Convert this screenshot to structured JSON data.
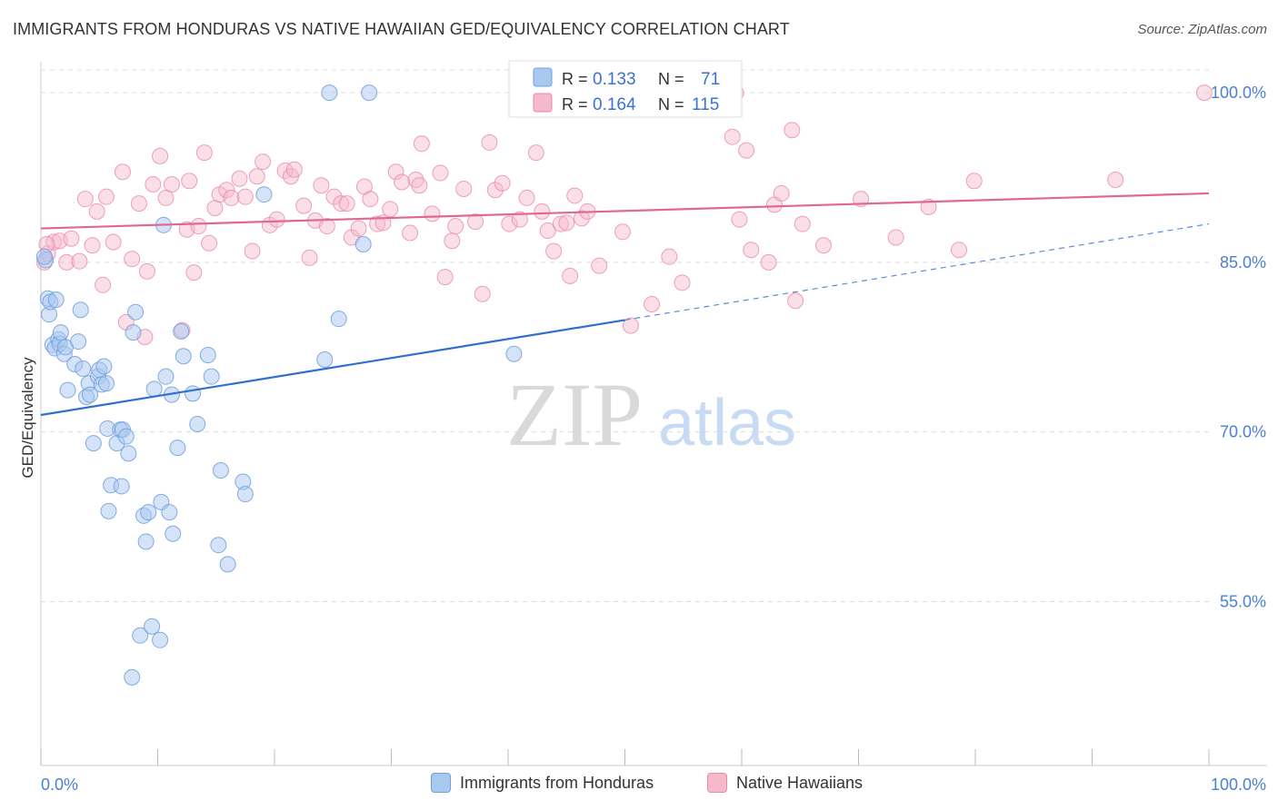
{
  "header": {
    "title": "IMMIGRANTS FROM HONDURAS VS NATIVE HAWAIIAN GED/EQUIVALENCY CORRELATION CHART",
    "source": "Source: ZipAtlas.com"
  },
  "watermark": {
    "zip": "ZIP",
    "atlas": "atlas"
  },
  "colors": {
    "blue_fill": "#a9c8f0",
    "blue_stroke": "#6f9fdd",
    "blue_line": "#2f6fd0",
    "pink_fill": "#f6b8cb",
    "pink_stroke": "#e98aa8",
    "pink_line": "#e0688f",
    "axis_text": "#4a7fd4",
    "grid": "#dddddd"
  },
  "chart_data": {
    "type": "scatter",
    "title": "IMMIGRANTS FROM HONDURAS VS NATIVE HAWAIIAN GED/EQUIVALENCY CORRELATION CHART",
    "ylabel": "GED/Equivalency",
    "xlabel": "",
    "x_tick_labels": [
      "0.0%",
      "100.0%"
    ],
    "y_tick_labels": [
      "100.0%",
      "85.0%",
      "70.0%",
      "55.0%"
    ],
    "y_ticks": [
      100,
      85,
      70,
      55
    ],
    "xlim": [
      0,
      100
    ],
    "ylim": [
      40.5,
      102.5
    ],
    "grid": true,
    "legend_position": "top-center",
    "series": [
      {
        "name": "Immigrants from Honduras",
        "color": "#a9c8f0",
        "R": "0.133",
        "N": "71",
        "trend": {
          "x": [
            0,
            50
          ],
          "y": [
            71.5,
            79.9
          ],
          "dashed_extension": {
            "x": [
              50,
              100
            ],
            "y": [
              79.9,
              88.4
            ]
          }
        },
        "points": [
          [
            0.4,
            85.2
          ],
          [
            0.6,
            81.8
          ],
          [
            0.7,
            80.4
          ],
          [
            0.8,
            81.5
          ],
          [
            1.0,
            77.7
          ],
          [
            1.2,
            77.4
          ],
          [
            1.5,
            78.2
          ],
          [
            1.6,
            77.8
          ],
          [
            1.7,
            78.8
          ],
          [
            2.0,
            76.9
          ],
          [
            2.1,
            77.5
          ],
          [
            2.3,
            73.7
          ],
          [
            2.9,
            76.0
          ],
          [
            3.2,
            78.0
          ],
          [
            3.4,
            80.8
          ],
          [
            3.6,
            75.6
          ],
          [
            3.9,
            73.1
          ],
          [
            4.1,
            74.3
          ],
          [
            4.2,
            73.3
          ],
          [
            4.5,
            69.0
          ],
          [
            4.9,
            74.9
          ],
          [
            5.0,
            75.5
          ],
          [
            5.2,
            74.2
          ],
          [
            5.4,
            75.8
          ],
          [
            5.6,
            74.3
          ],
          [
            5.7,
            70.3
          ],
          [
            6.0,
            65.3
          ],
          [
            5.8,
            63.0
          ],
          [
            6.5,
            69.0
          ],
          [
            6.8,
            70.2
          ],
          [
            6.9,
            65.2
          ],
          [
            7.0,
            70.2
          ],
          [
            7.3,
            69.6
          ],
          [
            7.5,
            68.1
          ],
          [
            7.8,
            48.3
          ],
          [
            7.9,
            78.8
          ],
          [
            8.1,
            80.6
          ],
          [
            8.5,
            52.0
          ],
          [
            8.8,
            62.6
          ],
          [
            9.0,
            60.3
          ],
          [
            9.2,
            62.9
          ],
          [
            9.5,
            52.8
          ],
          [
            9.7,
            73.8
          ],
          [
            10.2,
            51.6
          ],
          [
            10.3,
            63.8
          ],
          [
            10.5,
            88.3
          ],
          [
            10.7,
            74.9
          ],
          [
            11.0,
            62.9
          ],
          [
            11.2,
            73.3
          ],
          [
            11.3,
            61.0
          ],
          [
            11.7,
            68.6
          ],
          [
            12.0,
            78.9
          ],
          [
            12.2,
            76.7
          ],
          [
            13.0,
            73.4
          ],
          [
            13.4,
            70.7
          ],
          [
            14.3,
            76.8
          ],
          [
            14.6,
            74.9
          ],
          [
            15.2,
            60.0
          ],
          [
            15.4,
            66.6
          ],
          [
            16.0,
            58.3
          ],
          [
            17.3,
            65.6
          ],
          [
            17.5,
            64.5
          ],
          [
            19.1,
            91.0
          ],
          [
            24.3,
            76.4
          ],
          [
            24.7,
            100.0
          ],
          [
            25.5,
            80.0
          ],
          [
            27.6,
            86.6
          ],
          [
            28.1,
            100.0
          ],
          [
            40.5,
            76.9
          ],
          [
            0.3,
            85.5
          ],
          [
            1.3,
            81.7
          ]
        ]
      },
      {
        "name": "Native Hawaiians",
        "color": "#f6b8cb",
        "R": "0.164",
        "N": "115",
        "trend": {
          "x": [
            0,
            100
          ],
          "y": [
            88.0,
            91.1
          ]
        },
        "points": [
          [
            0.3,
            85.0
          ],
          [
            0.6,
            85.8
          ],
          [
            1.1,
            86.8
          ],
          [
            1.6,
            86.9
          ],
          [
            2.2,
            85.0
          ],
          [
            2.6,
            87.1
          ],
          [
            3.3,
            85.1
          ],
          [
            3.8,
            90.6
          ],
          [
            4.4,
            86.5
          ],
          [
            4.8,
            89.5
          ],
          [
            5.3,
            83.0
          ],
          [
            5.6,
            90.8
          ],
          [
            6.2,
            86.8
          ],
          [
            7.0,
            93.0
          ],
          [
            7.3,
            79.7
          ],
          [
            7.8,
            85.3
          ],
          [
            8.4,
            90.2
          ],
          [
            8.9,
            78.4
          ],
          [
            9.1,
            84.2
          ],
          [
            9.6,
            91.9
          ],
          [
            10.2,
            94.4
          ],
          [
            10.7,
            90.7
          ],
          [
            11.2,
            91.9
          ],
          [
            12.1,
            79.0
          ],
          [
            12.5,
            87.9
          ],
          [
            12.7,
            92.2
          ],
          [
            13.1,
            84.1
          ],
          [
            13.5,
            88.2
          ],
          [
            14.0,
            94.7
          ],
          [
            14.4,
            86.7
          ],
          [
            14.9,
            89.8
          ],
          [
            15.3,
            91.0
          ],
          [
            15.9,
            91.4
          ],
          [
            16.3,
            90.7
          ],
          [
            17.0,
            92.4
          ],
          [
            17.5,
            90.8
          ],
          [
            18.1,
            86.0
          ],
          [
            18.5,
            92.6
          ],
          [
            19.0,
            93.9
          ],
          [
            19.6,
            88.3
          ],
          [
            20.2,
            88.8
          ],
          [
            20.9,
            93.1
          ],
          [
            21.4,
            92.6
          ],
          [
            21.7,
            93.2
          ],
          [
            22.5,
            90.0
          ],
          [
            23.0,
            85.4
          ],
          [
            23.5,
            88.7
          ],
          [
            24.0,
            91.8
          ],
          [
            24.5,
            88.2
          ],
          [
            25.1,
            90.8
          ],
          [
            25.7,
            90.2
          ],
          [
            26.2,
            90.2
          ],
          [
            26.6,
            87.2
          ],
          [
            27.2,
            88.0
          ],
          [
            27.7,
            91.7
          ],
          [
            28.2,
            90.6
          ],
          [
            28.8,
            88.4
          ],
          [
            29.3,
            88.5
          ],
          [
            29.9,
            89.7
          ],
          [
            30.4,
            93.0
          ],
          [
            30.9,
            92.1
          ],
          [
            31.6,
            87.6
          ],
          [
            32.1,
            92.3
          ],
          [
            32.4,
            91.8
          ],
          [
            32.6,
            95.5
          ],
          [
            33.5,
            89.3
          ],
          [
            34.2,
            92.9
          ],
          [
            34.6,
            83.7
          ],
          [
            35.2,
            86.9
          ],
          [
            35.5,
            88.2
          ],
          [
            36.2,
            91.5
          ],
          [
            37.2,
            88.6
          ],
          [
            37.8,
            82.2
          ],
          [
            38.4,
            95.6
          ],
          [
            38.9,
            91.4
          ],
          [
            39.5,
            92.0
          ],
          [
            40.1,
            88.4
          ],
          [
            41.0,
            88.8
          ],
          [
            41.6,
            90.7
          ],
          [
            42.4,
            94.7
          ],
          [
            42.9,
            89.5
          ],
          [
            43.4,
            87.8
          ],
          [
            43.9,
            86.0
          ],
          [
            44.5,
            88.4
          ],
          [
            45.0,
            88.5
          ],
          [
            45.3,
            83.8
          ],
          [
            45.7,
            90.9
          ],
          [
            46.3,
            88.9
          ],
          [
            46.8,
            89.5
          ],
          [
            47.8,
            84.7
          ],
          [
            49.8,
            87.7
          ],
          [
            50.5,
            79.4
          ],
          [
            52.3,
            81.3
          ],
          [
            53.8,
            85.5
          ],
          [
            54.9,
            83.2
          ],
          [
            59.2,
            96.1
          ],
          [
            59.8,
            88.8
          ],
          [
            60.4,
            94.9
          ],
          [
            60.8,
            86.1
          ],
          [
            62.3,
            85.0
          ],
          [
            62.8,
            90.1
          ],
          [
            63.4,
            91.1
          ],
          [
            64.3,
            96.7
          ],
          [
            64.6,
            81.6
          ],
          [
            65.2,
            88.4
          ],
          [
            67.0,
            86.5
          ],
          [
            70.2,
            90.6
          ],
          [
            73.2,
            87.2
          ],
          [
            76.0,
            89.9
          ],
          [
            78.6,
            86.1
          ],
          [
            79.9,
            92.2
          ],
          [
            92.0,
            92.3
          ],
          [
            99.6,
            100.0
          ],
          [
            59.5,
            100.0
          ],
          [
            0.5,
            86.6
          ]
        ]
      }
    ]
  },
  "legend_bottom": [
    {
      "label": "Immigrants from Honduras"
    },
    {
      "label": "Native Hawaiians"
    }
  ]
}
